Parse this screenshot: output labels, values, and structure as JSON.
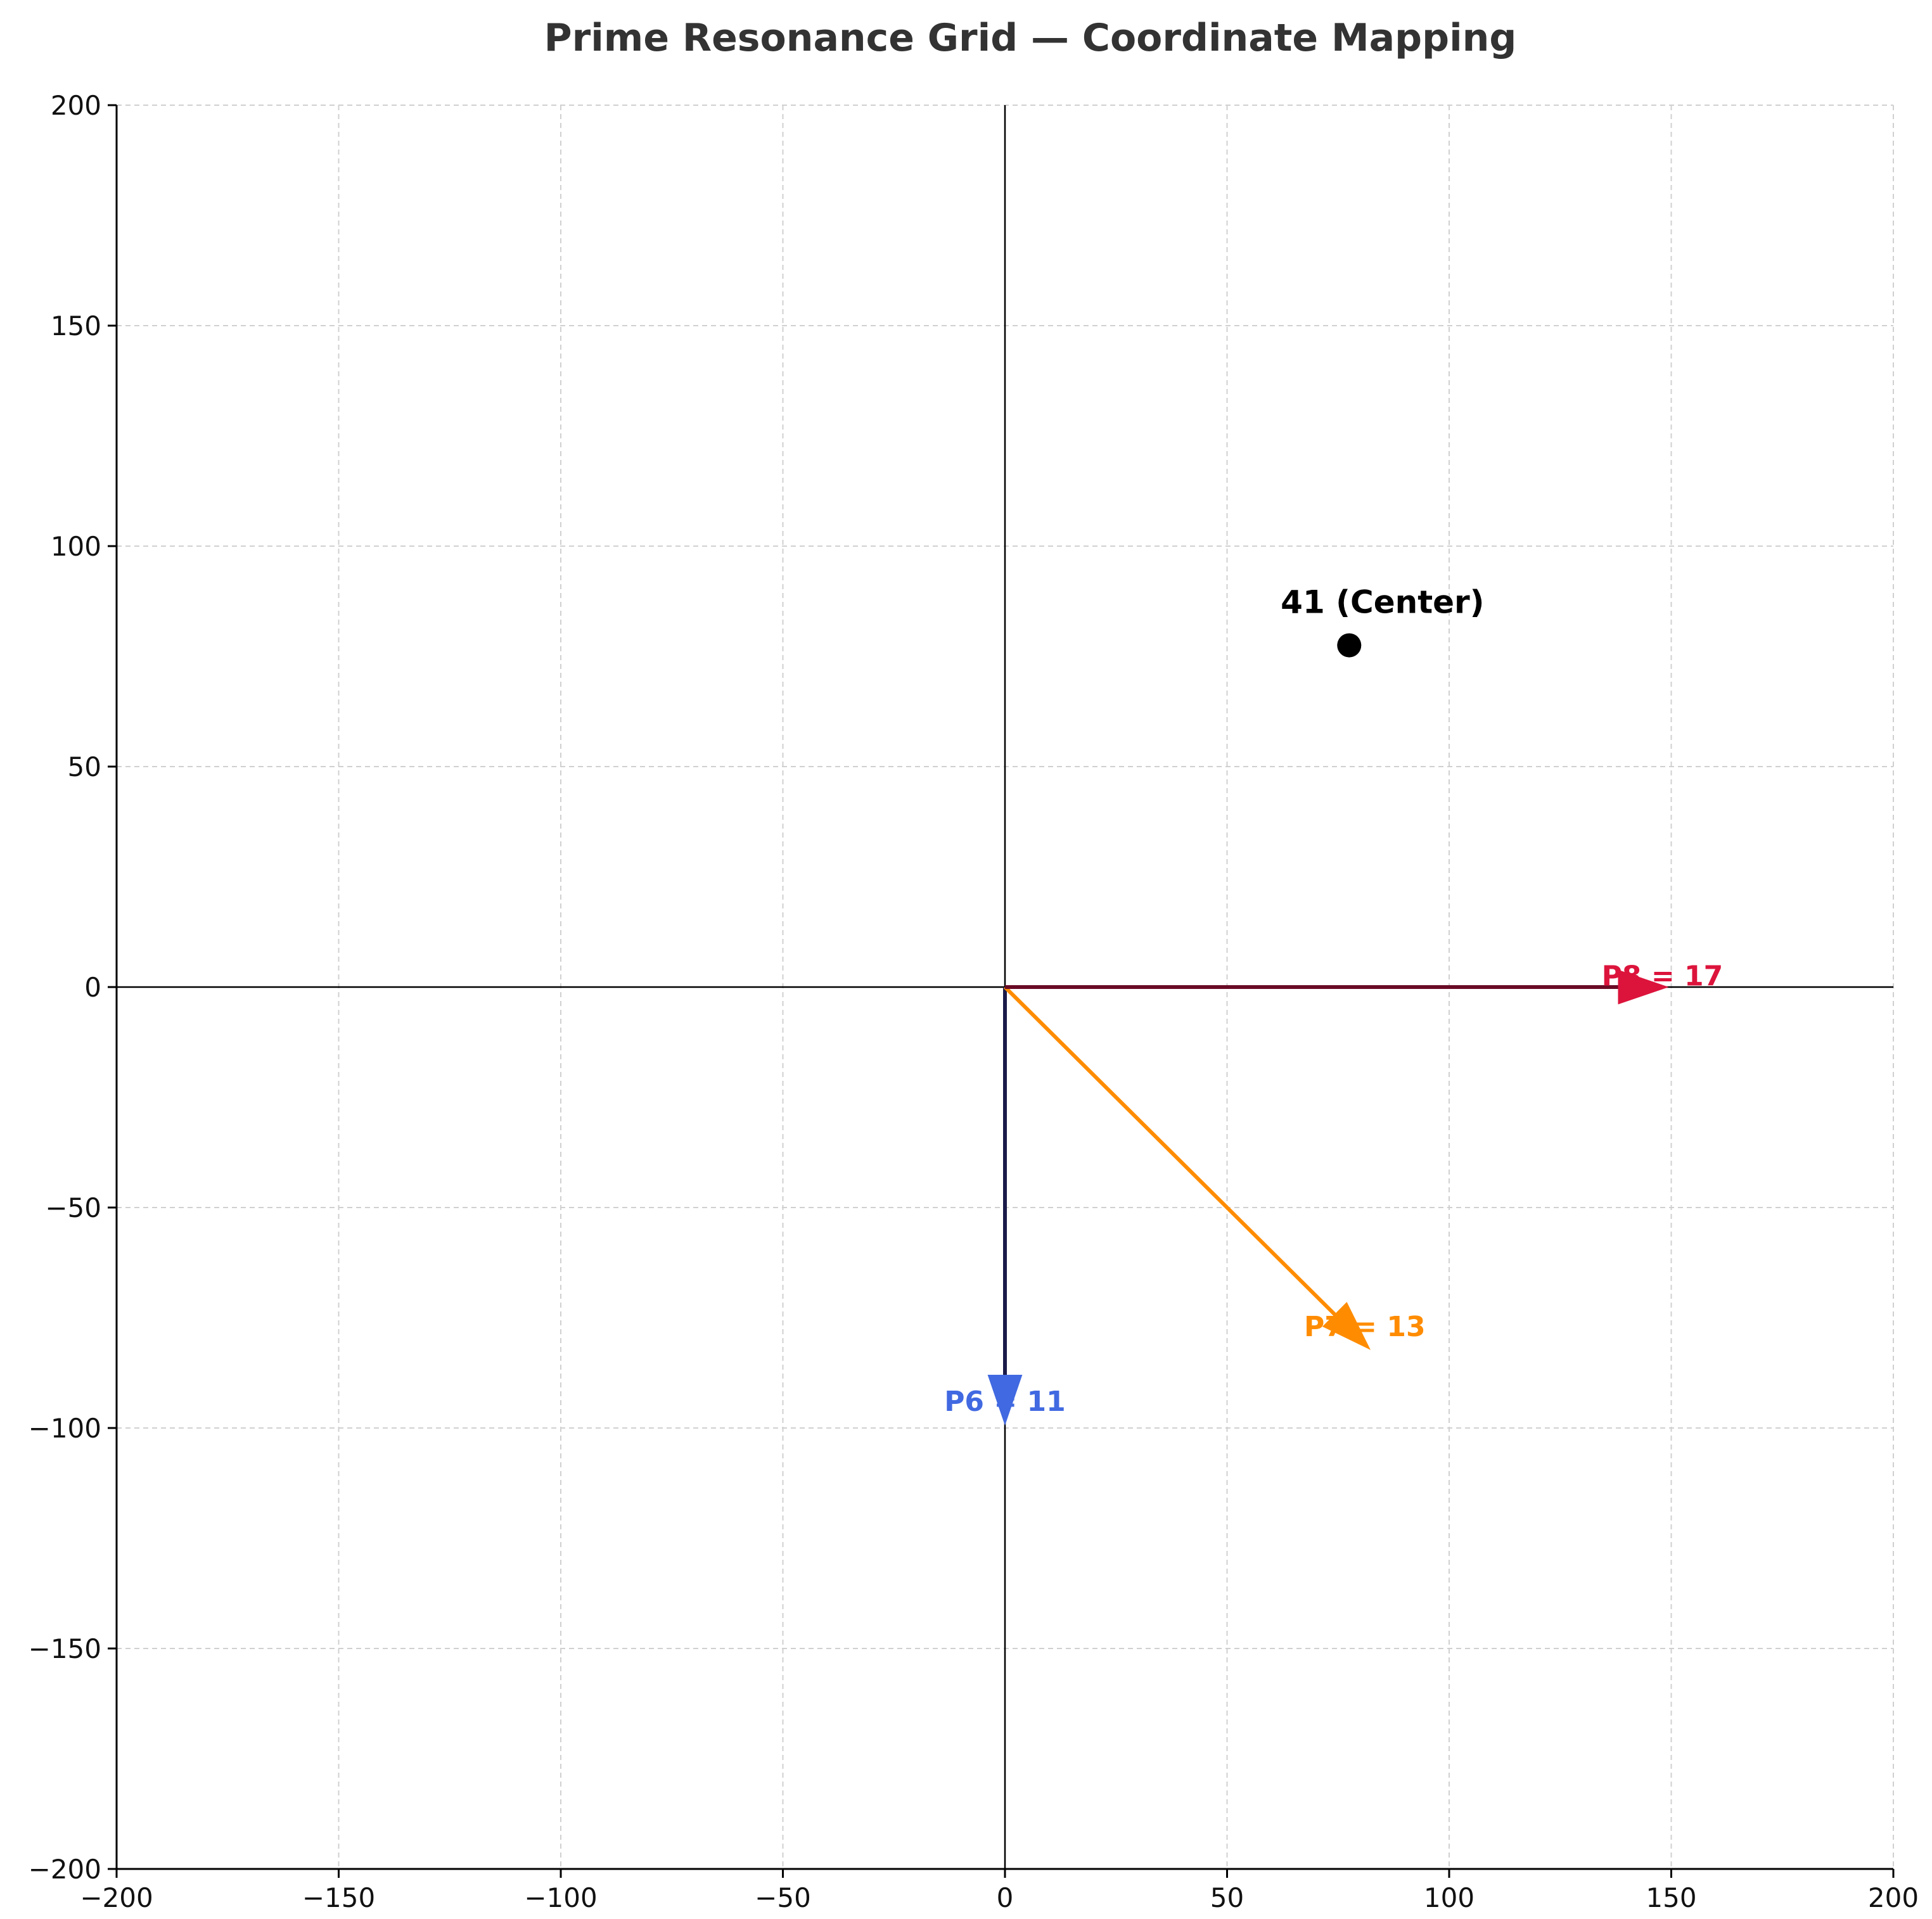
{
  "chart_data": {
    "type": "scatter",
    "title": "Prime Resonance Grid — Coordinate Mapping",
    "xlabel": "",
    "ylabel": "",
    "xlim": [
      -200,
      200
    ],
    "ylim": [
      -200,
      200
    ],
    "x_ticks": [
      -200,
      -150,
      -100,
      -50,
      0,
      50,
      100,
      150,
      200
    ],
    "y_ticks": [
      -200,
      -150,
      -100,
      -50,
      0,
      50,
      100,
      150,
      200
    ],
    "x_tick_labels": [
      "−200",
      "−150",
      "−100",
      "−50",
      "0",
      "50",
      "100",
      "150",
      "200"
    ],
    "y_tick_labels": [
      "−200",
      "−150",
      "−100",
      "−50",
      "0",
      "50",
      "100",
      "150",
      "200"
    ],
    "grid": true,
    "grid_style": "dashed",
    "axis_lines_through_origin": true,
    "point": {
      "label": "41 (Center)",
      "x": 77.5,
      "y": 77.5,
      "color": "#000000",
      "label_x": 85,
      "label_y": 87
    },
    "arrows": [
      {
        "label": "P6 = 11",
        "x_start": 0,
        "y_start": 0,
        "x_end": 0,
        "y_end": -99,
        "color": "#4169e1",
        "shaft_color": "#1a1a4a",
        "label_x": 0,
        "label_y": -94
      },
      {
        "label": "P7 = 13",
        "x_start": 0,
        "y_start": 0,
        "x_end": 82,
        "y_end": -82,
        "color": "#ff8c00",
        "shaft_color": "#ff8c00",
        "label_x": 81,
        "label_y": -77
      },
      {
        "label": "P8 = 17",
        "x_start": 0,
        "y_start": 0,
        "x_end": 149,
        "y_end": 0,
        "color": "#dc143c",
        "shaft_color": "#6a0b25",
        "label_x": 148,
        "label_y": 2.5
      }
    ]
  }
}
